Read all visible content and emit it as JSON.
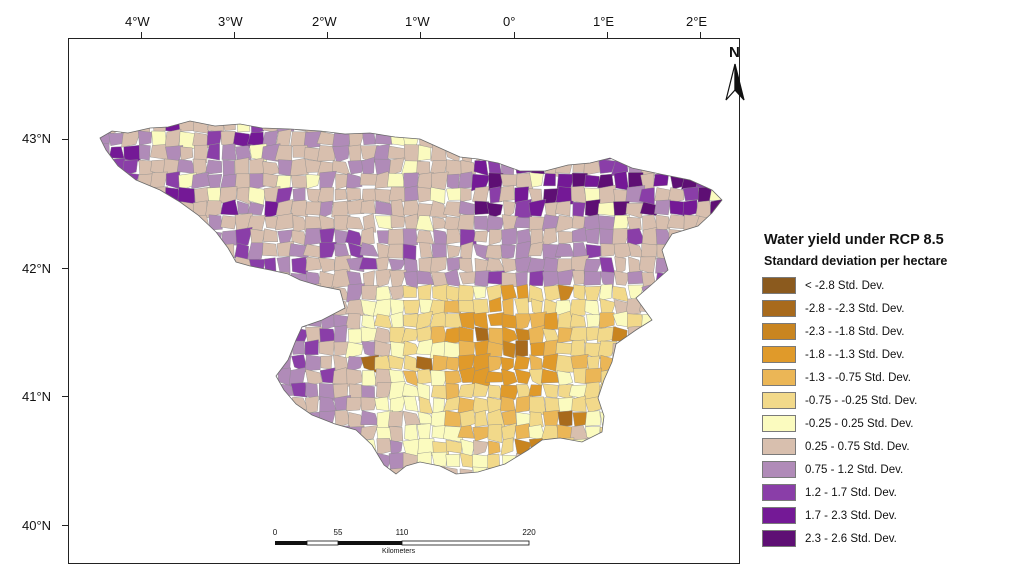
{
  "longitude_labels": [
    "4°W",
    "3°W",
    "2°W",
    "1°W",
    "0°",
    "1°E",
    "2°E"
  ],
  "latitude_labels": [
    "43°N",
    "42°N",
    "41°N",
    "40°N"
  ],
  "north_arrow": {
    "letter": "N",
    "icon": "north-arrow-icon"
  },
  "legend": {
    "title": "Water yield under RCP 8.5",
    "subtitle": "Standard deviation per hectare",
    "classes": [
      {
        "label": "< -2.8 Std. Dev.",
        "color": "#8b5a1e"
      },
      {
        "label": "-2.8 - -2.3 Std. Dev.",
        "color": "#a86a1c"
      },
      {
        "label": "-2.3 - -1.8 Std. Dev.",
        "color": "#c98520"
      },
      {
        "label": "-1.8 - -1.3 Std. Dev.",
        "color": "#e09a2a"
      },
      {
        "label": "-1.3 - -0.75 Std. Dev.",
        "color": "#ebb656"
      },
      {
        "label": "-0.75 - -0.25 Std. Dev.",
        "color": "#f2d98a"
      },
      {
        "label": "-0.25 - 0.25 Std. Dev.",
        "color": "#fbfbbf"
      },
      {
        "label": "0.25 - 0.75 Std. Dev.",
        "color": "#d8bfae"
      },
      {
        "label": "0.75 - 1.2 Std. Dev.",
        "color": "#b08bb8"
      },
      {
        "label": "1.2 - 1.7 Std. Dev.",
        "color": "#8a3ea8"
      },
      {
        "label": "1.7 - 2.3 Std. Dev.",
        "color": "#741996"
      },
      {
        "label": "2.3 - 2.6 Std. Dev.",
        "color": "#5e0f74"
      }
    ]
  },
  "scale_bar": {
    "ticks": [
      "0",
      "55",
      "110",
      "220"
    ],
    "unit": "Kilometers"
  }
}
